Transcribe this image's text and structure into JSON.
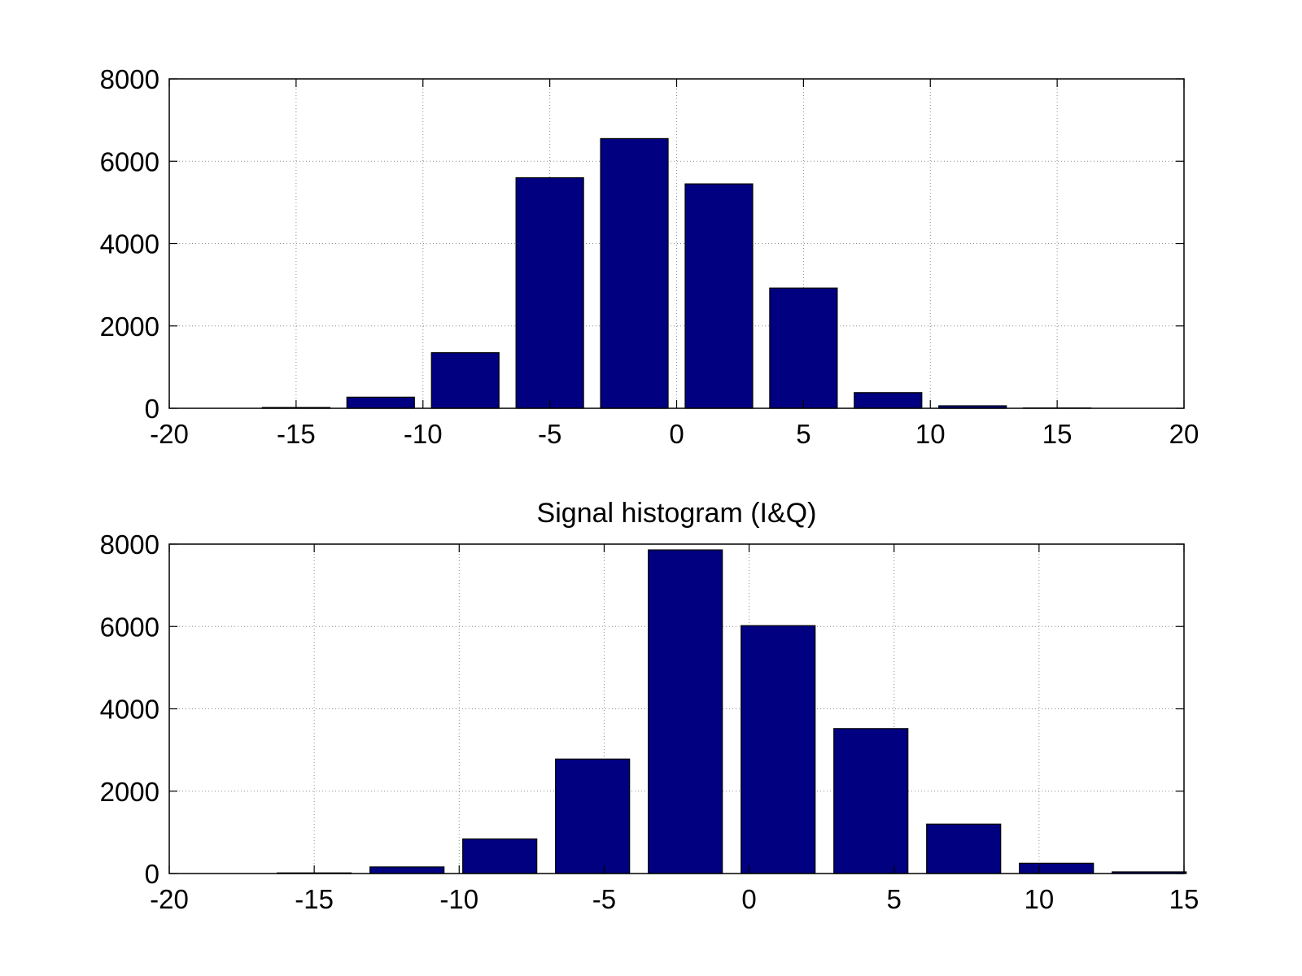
{
  "chart_data": [
    {
      "type": "bar",
      "title": "",
      "xlabel": "",
      "ylabel": "",
      "x": [
        -15,
        -11.667,
        -8.333,
        -5,
        -1.667,
        1.667,
        5,
        8.333,
        11.667,
        15
      ],
      "values": [
        20,
        270,
        1350,
        5600,
        6550,
        5450,
        2920,
        380,
        60,
        10
      ],
      "xlim": [
        -20,
        20
      ],
      "ylim": [
        0,
        8000
      ],
      "xticks": [
        "-20",
        "-15",
        "-10",
        "-5",
        "0",
        "5",
        "10",
        "15",
        "20"
      ],
      "yticks": [
        "0",
        "2000",
        "4000",
        "6000",
        "8000"
      ],
      "grid": true,
      "bar_color": "#000080"
    },
    {
      "type": "bar",
      "title": "Signal histogram (I&Q)",
      "xlabel": "",
      "ylabel": "",
      "x": [
        -15,
        -11.8,
        -8.6,
        -5.4,
        -2.2,
        1,
        4.2,
        7.4,
        10.6,
        13.8
      ],
      "values": [
        15,
        160,
        840,
        2780,
        7860,
        6020,
        3520,
        1200,
        250,
        40
      ],
      "xlim": [
        -20,
        15
      ],
      "ylim": [
        0,
        8000
      ],
      "xticks": [
        "-20",
        "-15",
        "-10",
        "-5",
        "0",
        "5",
        "10",
        "15"
      ],
      "yticks": [
        "0",
        "2000",
        "4000",
        "6000",
        "8000"
      ],
      "grid": true,
      "bar_color": "#000080"
    }
  ]
}
